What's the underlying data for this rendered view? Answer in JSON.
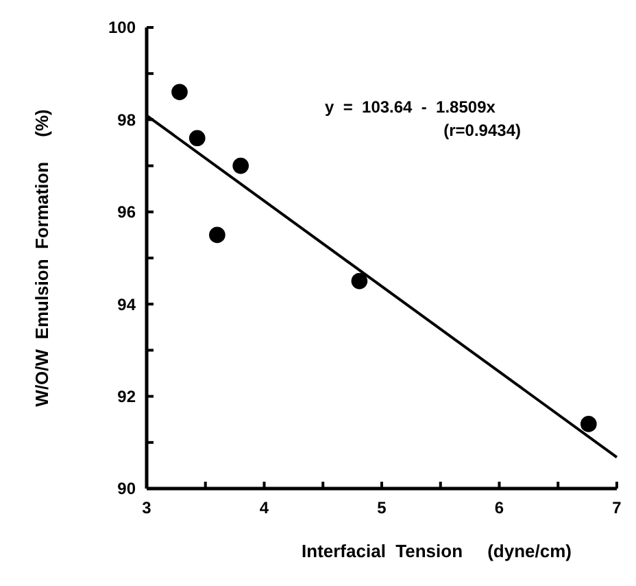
{
  "chart_data": {
    "type": "scatter",
    "xlabel": "Interfacial  Tension     (dyne/cm)",
    "ylabel": "W/O/W  Emulsion  Formation     (%)",
    "xlim": [
      3,
      7
    ],
    "ylim": [
      90,
      100
    ],
    "xticks": [
      3,
      {
        "value": 3.5,
        "label": null
      },
      4,
      {
        "value": 4.5,
        "label": null
      },
      5,
      {
        "value": 5.5,
        "label": null
      },
      6,
      {
        "value": 6.5,
        "label": null
      },
      7
    ],
    "yticks": [
      90,
      {
        "value": 91,
        "label": null
      },
      92,
      {
        "value": 93,
        "label": null
      },
      94,
      {
        "value": 95,
        "label": null
      },
      96,
      {
        "value": 97,
        "label": null
      },
      98,
      {
        "value": 99,
        "label": null
      },
      100
    ],
    "grid": false,
    "series": [
      {
        "color": "#000000",
        "marker": "circle",
        "x": [
          3.28,
          3.43,
          3.8,
          3.6,
          4.81,
          6.76
        ],
        "values": [
          98.6,
          97.6,
          97.0,
          95.5,
          94.5,
          91.4
        ]
      },
      {
        "type": "line",
        "color": "#000000",
        "x": [
          3,
          7
        ],
        "values": [
          98.09,
          90.68
        ]
      }
    ],
    "annotations": [
      "y  =  103.64  -  1.8509x",
      "(r=0.9434)"
    ]
  }
}
